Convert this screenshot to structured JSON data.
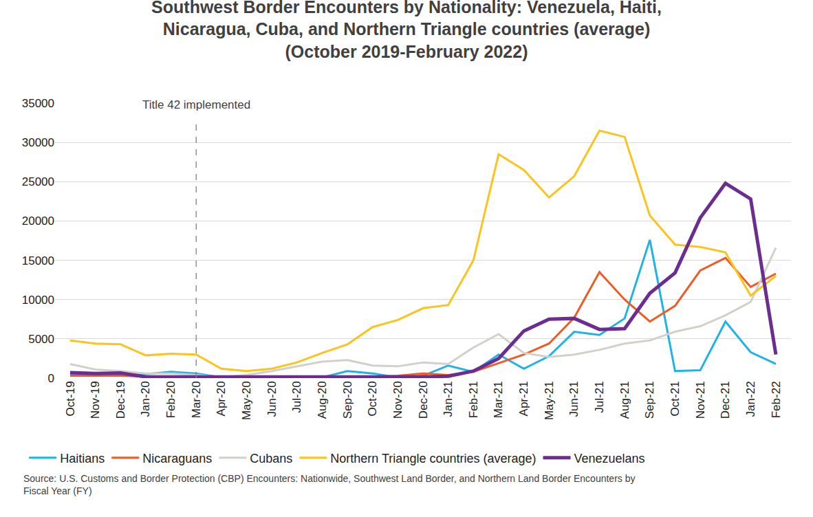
{
  "chart_data": {
    "type": "line",
    "title": "Southwest Border Encounters by Nationality: Venezuela, Haiti,\nNicaragua, Cuba, and Northern Triangle countries (average)\n(October 2019-February 2022)",
    "source": "Source: U.S. Customs and Border Protection (CBP) Encounters: Nationwide, Southwest Land Border, and Northern Land Border Encounters by\nFiscal Year (FY)",
    "annotations": [
      {
        "text": "Title 42 implemented",
        "x": "Mar-20",
        "line_style": "dashed"
      }
    ],
    "categories": [
      "Oct-19",
      "Nov-19",
      "Dec-19",
      "Jan-20",
      "Feb-20",
      "Mar-20",
      "Apr-20",
      "May-20",
      "Jun-20",
      "Jul-20",
      "Aug-20",
      "Sep-20",
      "Oct-20",
      "Nov-20",
      "Dec-20",
      "Jan-21",
      "Feb-21",
      "Mar-21",
      "Apr-21",
      "May-21",
      "Jun-21",
      "Jul-21",
      "Aug-21",
      "Sep-21",
      "Oct-21",
      "Nov-21",
      "Dec-21",
      "Jan-22",
      "Feb-22"
    ],
    "series": [
      {
        "name": "Haitians",
        "color": "#1fb3e5",
        "values": [
          400,
          300,
          400,
          500,
          800,
          600,
          100,
          100,
          100,
          100,
          100,
          900,
          600,
          100,
          300,
          1600,
          800,
          3000,
          1200,
          2800,
          5900,
          5500,
          7600,
          17600,
          900,
          1000,
          7200,
          3300,
          1800
        ]
      },
      {
        "name": "Nicaraguans",
        "color": "#ef5b25",
        "values": [
          300,
          300,
          300,
          200,
          200,
          200,
          50,
          50,
          50,
          50,
          50,
          100,
          200,
          300,
          600,
          400,
          800,
          1900,
          3000,
          4400,
          7700,
          13500,
          10000,
          7200,
          9200,
          13700,
          15300,
          11600,
          13300
        ]
      },
      {
        "name": "Cubans",
        "color": "#d3d0cc",
        "values": [
          1800,
          1100,
          900,
          600,
          600,
          400,
          100,
          400,
          900,
          1500,
          2100,
          2300,
          1600,
          1500,
          2000,
          1800,
          3900,
          5600,
          3200,
          2700,
          3000,
          3600,
          4400,
          4800,
          5900,
          6600,
          8000,
          9700,
          16600
        ]
      },
      {
        "name": "Northern Triangle countries (average)",
        "color": "#fbc31b",
        "values": [
          4800,
          4400,
          4300,
          2900,
          3100,
          3000,
          1200,
          900,
          1200,
          2000,
          3200,
          4300,
          6500,
          7400,
          8900,
          9300,
          15000,
          28500,
          26500,
          23000,
          25700,
          31500,
          30700,
          20700,
          17000,
          16700,
          16000,
          10500,
          13000
        ]
      },
      {
        "name": "Venezuelans",
        "color": "#6b2d8f",
        "values": [
          700,
          600,
          650,
          150,
          150,
          150,
          50,
          50,
          50,
          50,
          50,
          100,
          150,
          150,
          150,
          250,
          900,
          2500,
          6000,
          7500,
          7600,
          6200,
          6300,
          10800,
          13400,
          20400,
          24800,
          22800,
          3000
        ]
      }
    ],
    "ylim": [
      0,
      35000
    ],
    "yticks": [
      0,
      5000,
      10000,
      15000,
      20000,
      25000,
      30000,
      35000
    ],
    "grid": true,
    "legend": "bottom"
  }
}
